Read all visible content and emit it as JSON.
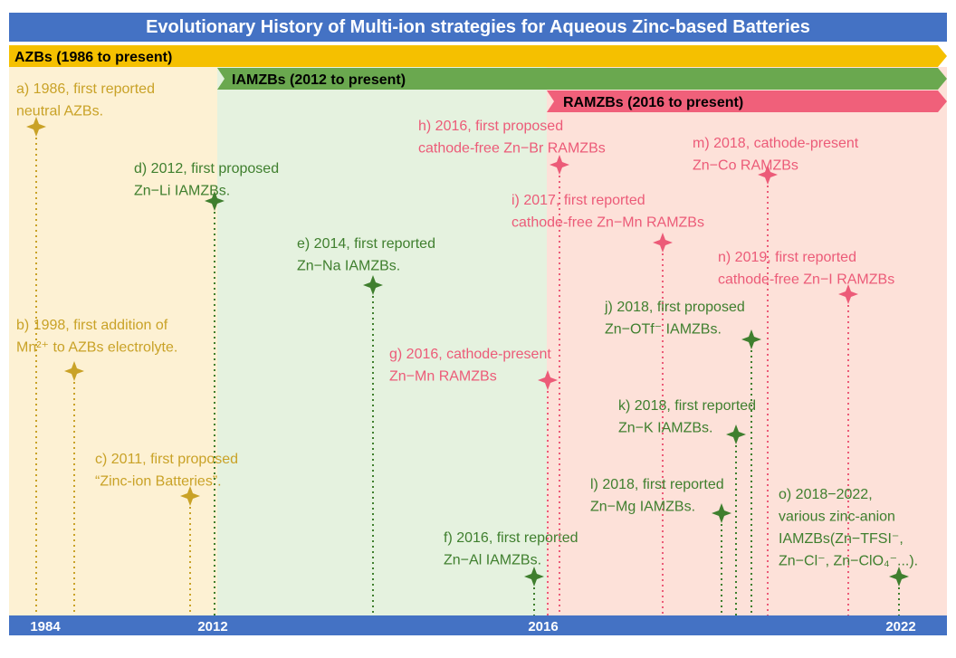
{
  "header": {
    "title": "Evolutionary History of Multi-ion strategies for Aqueous Zinc-based Batteries"
  },
  "bands": [
    "AZBs (1986 to present)",
    "IAMZBs (2012 to present)",
    "RAMZBs (2016 to present)"
  ],
  "axis_labels": [
    "1984",
    "2012",
    "2016",
    "2022"
  ],
  "events": [
    {
      "lines": [
        "a) 1986, first reported",
        "neutral AZBs."
      ]
    },
    {
      "lines": [
        "b) 1998, first addition of",
        "Mn²⁺ to AZBs electrolyte."
      ]
    },
    {
      "lines": [
        "c) 2011, first proposed",
        "“Zinc-ion Batteries”."
      ]
    },
    {
      "lines": [
        "d) 2012, first proposed",
        "Zn−Li IAMZBs."
      ]
    },
    {
      "lines": [
        "e) 2014, first reported",
        "Zn−Na IAMZBs."
      ]
    },
    {
      "lines": [
        "f) 2016, first reported",
        "Zn−Al IAMZBs."
      ]
    },
    {
      "lines": [
        "g) 2016, cathode-present",
        "Zn−Mn RAMZBs"
      ]
    },
    {
      "lines": [
        "h) 2016, first proposed",
        "cathode-free Zn−Br RAMZBs"
      ]
    },
    {
      "lines": [
        "i) 2017, first reported",
        "cathode-free Zn−Mn RAMZBs"
      ]
    },
    {
      "lines": [
        "j) 2018, first proposed",
        "Zn−OTf⁻ IAMZBs."
      ]
    },
    {
      "lines": [
        "k) 2018, first reported",
        "Zn−K IAMZBs."
      ]
    },
    {
      "lines": [
        "l) 2018, first reported",
        "Zn−Mg IAMZBs."
      ]
    },
    {
      "lines": [
        "m) 2018, cathode-present",
        "Zn−Co RAMZBs"
      ]
    },
    {
      "lines": [
        "n) 2019, first reported",
        "cathode-free Zn−I RAMZBs"
      ]
    },
    {
      "lines": [
        "o) 2018−2022,",
        "various zinc-anion",
        "IAMZBs(Zn−TFSI⁻,",
        "Zn−Cl⁻, Zn−ClO₄⁻...)."
      ]
    }
  ]
}
